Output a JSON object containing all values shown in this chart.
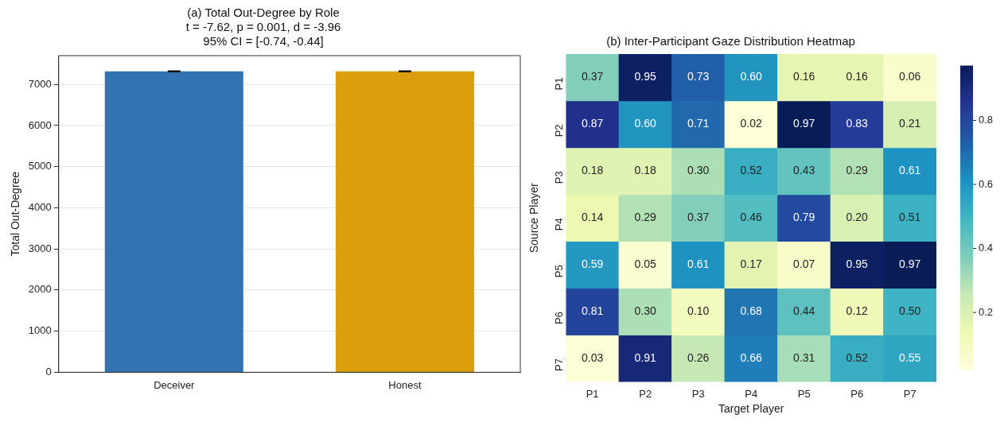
{
  "chart_data": [
    {
      "type": "bar",
      "title": "(a) Total Out-Degree by Role",
      "subtitle": "t = -7.62, p = 0.001, d = -3.96",
      "annotations": [
        "95% CI = [-0.74, -0.44]"
      ],
      "ylabel": "Total Out-Degree",
      "categories": [
        "Deceiver",
        "Honest"
      ],
      "values": [
        7320,
        7320
      ],
      "errors": [
        10,
        10
      ],
      "colors": [
        "#3373b1",
        "#db9e0c"
      ],
      "ylim": [
        0,
        7700
      ],
      "yticks": [
        0,
        1000,
        2000,
        3000,
        4000,
        5000,
        6000,
        7000
      ],
      "grid": "y",
      "legend": false
    },
    {
      "type": "heatmap",
      "title": "(b) Inter-Participant Gaze Distribution Heatmap",
      "xlabel": "Target Player",
      "ylabel": "Source Player",
      "categories": [
        "P1",
        "P2",
        "P3",
        "P4",
        "P5",
        "P6",
        "P7"
      ],
      "y_categories": [
        "P1",
        "P2",
        "P3",
        "P4",
        "P5",
        "P6",
        "P7"
      ],
      "cells": [
        [
          0.37,
          0.95,
          0.73,
          0.6,
          0.16,
          0.16,
          0.06
        ],
        [
          0.87,
          0.6,
          0.71,
          0.02,
          0.97,
          0.83,
          0.21
        ],
        [
          0.18,
          0.18,
          0.3,
          0.52,
          0.43,
          0.29,
          0.61
        ],
        [
          0.14,
          0.29,
          0.37,
          0.46,
          0.79,
          0.2,
          0.51
        ],
        [
          0.59,
          0.05,
          0.61,
          0.17,
          0.07,
          0.95,
          0.97
        ],
        [
          0.81,
          0.3,
          0.1,
          0.68,
          0.44,
          0.12,
          0.5
        ],
        [
          0.03,
          0.91,
          0.26,
          0.66,
          0.31,
          0.52,
          0.55
        ]
      ],
      "cell_labels": [
        [
          "0.37",
          "0.95",
          "0.73",
          "0.60",
          "0.16",
          "0.16",
          "0.06"
        ],
        [
          "0.87",
          "0.60",
          "0.71",
          "0.02",
          "0.97",
          "0.83",
          "0.21"
        ],
        [
          "0.18",
          "0.18",
          "0.30",
          "0.52",
          "0.43",
          "0.29",
          "0.61"
        ],
        [
          "0.14",
          "0.29",
          "0.37",
          "0.46",
          "0.79",
          "0.20",
          "0.51"
        ],
        [
          "0.59",
          "0.05",
          "0.61",
          "0.17",
          "0.07",
          "0.95",
          "0.97"
        ],
        [
          "0.81",
          "0.30",
          "0.10",
          "0.68",
          "0.44",
          "0.12",
          "0.50"
        ],
        [
          "0.03",
          "0.91",
          "0.26",
          "0.66",
          "0.31",
          "0.52",
          "0.55"
        ]
      ],
      "clim": [
        0.02,
        0.97
      ],
      "cticks": [
        0.2,
        0.4,
        0.6,
        0.8
      ],
      "grid": false,
      "legend": false
    }
  ]
}
